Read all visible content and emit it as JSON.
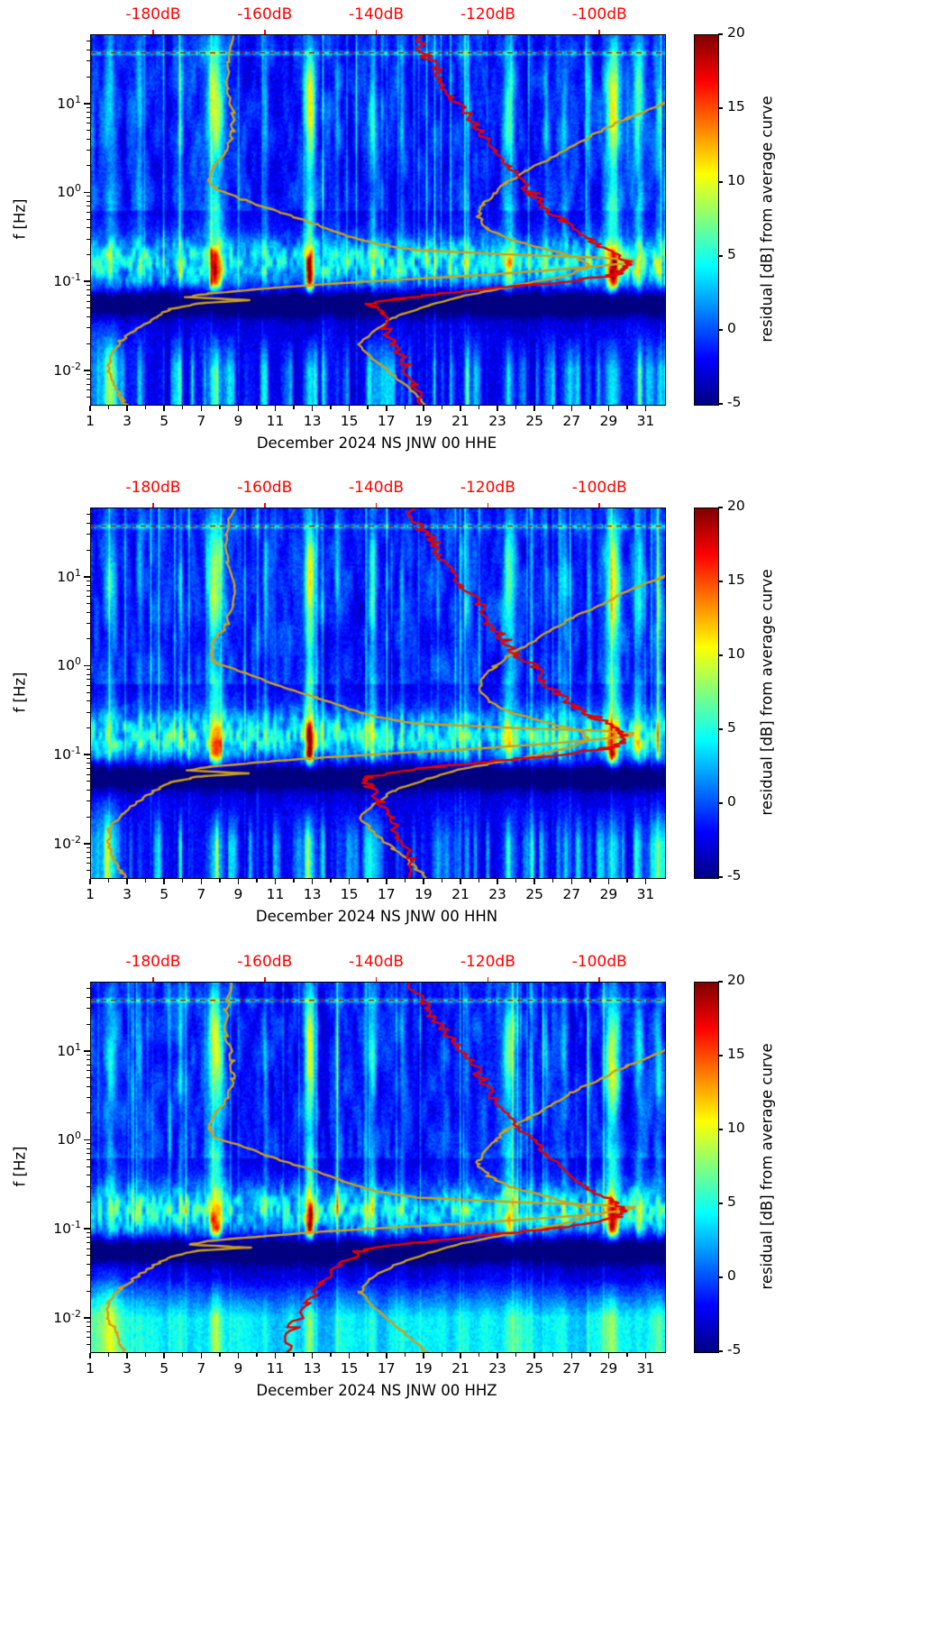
{
  "figure": {
    "background": "#ffffff"
  },
  "chart_data": {
    "type": "heatmap",
    "subtype": "seismic-psd-residual-spectrogram",
    "shared": {
      "ylabel": "f [Hz]",
      "y_scale": "log",
      "y_range_hz": [
        0.0042,
        60
      ],
      "y_major_ticks": [
        "10^1",
        "10^0",
        "10^-1",
        "10^-2"
      ],
      "y_major_ticks_hz": [
        10,
        1,
        0.1,
        0.01
      ],
      "x_axis": {
        "unit": "day of month",
        "ticks": [
          1,
          3,
          5,
          7,
          9,
          11,
          13,
          15,
          17,
          19,
          21,
          23,
          25,
          27,
          29,
          31
        ],
        "range": [
          1,
          32
        ]
      },
      "top_axis": {
        "unit": "dB",
        "color": "#ff0000",
        "ticks_db": [
          -180,
          -160,
          -140,
          -120,
          -100
        ],
        "tick_labels": [
          "-180dB",
          "-160dB",
          "-140dB",
          "-120dB",
          "-100dB"
        ],
        "range_db": [
          -191.3,
          -88.4
        ]
      },
      "colorbar": {
        "label": "residual [dB] from average curve",
        "range": [
          -5,
          20
        ],
        "ticks": [
          20,
          15,
          10,
          5,
          0,
          -5
        ],
        "colormap": "jet",
        "stops": [
          {
            "t": 0,
            "c": "#000083"
          },
          {
            "t": 0.125,
            "c": "#0000ff"
          },
          {
            "t": 0.375,
            "c": "#00ffff"
          },
          {
            "t": 0.625,
            "c": "#ffff00"
          },
          {
            "t": 0.875,
            "c": "#ff0000"
          },
          {
            "t": 1,
            "c": "#800000"
          }
        ]
      },
      "marker_line_hz": 38,
      "overlay_curves": [
        {
          "name": "noise-model-upper",
          "color": "#cc9f1d",
          "points_hz_db": [
            [
              14,
              -84
            ],
            [
              10,
              -89
            ],
            [
              7,
              -95
            ],
            [
              5,
              -100
            ],
            [
              3.5,
              -105
            ],
            [
              2.5,
              -109
            ],
            [
              1.8,
              -113
            ],
            [
              1.3,
              -117
            ],
            [
              1.0,
              -119
            ],
            [
              0.75,
              -121
            ],
            [
              0.55,
              -122
            ],
            [
              0.4,
              -120
            ],
            [
              0.3,
              -116
            ],
            [
              0.24,
              -110
            ],
            [
              0.19,
              -104
            ],
            [
              0.15,
              -102
            ],
            [
              0.12,
              -106
            ],
            [
              0.1,
              -112
            ],
            [
              0.085,
              -118
            ],
            [
              0.07,
              -125
            ],
            [
              0.055,
              -131
            ],
            [
              0.04,
              -137
            ],
            [
              0.028,
              -141
            ],
            [
              0.02,
              -143
            ],
            [
              0.014,
              -141
            ],
            [
              0.009,
              -137
            ],
            [
              0.006,
              -134
            ],
            [
              0.0042,
              -131
            ]
          ]
        },
        {
          "name": "noise-model-lower",
          "color": "#cc9f1d",
          "points_hz_db": [
            [
              58,
              -166
            ],
            [
              30,
              -167
            ],
            [
              15,
              -167
            ],
            [
              8,
              -166
            ],
            [
              5,
              -166
            ],
            [
              3,
              -167
            ],
            [
              2,
              -169
            ],
            [
              1.4,
              -170
            ],
            [
              1.1,
              -169
            ],
            [
              0.85,
              -164
            ],
            [
              0.6,
              -157
            ],
            [
              0.45,
              -151
            ],
            [
              0.33,
              -145
            ],
            [
              0.27,
              -140
            ],
            [
              0.23,
              -133
            ],
            [
              0.205,
              -116
            ],
            [
              0.19,
              -100
            ],
            [
              0.178,
              -94
            ],
            [
              0.165,
              -95
            ],
            [
              0.15,
              -101
            ],
            [
              0.135,
              -110
            ],
            [
              0.12,
              -122
            ],
            [
              0.105,
              -138
            ],
            [
              0.095,
              -150
            ],
            [
              0.085,
              -160
            ],
            [
              0.075,
              -170
            ],
            [
              0.068,
              -174
            ],
            [
              0.063,
              -163
            ],
            [
              0.058,
              -172
            ],
            [
              0.05,
              -177
            ],
            [
              0.04,
              -180
            ],
            [
              0.03,
              -183
            ],
            [
              0.022,
              -186
            ],
            [
              0.015,
              -188
            ],
            [
              0.01,
              -188
            ],
            [
              0.007,
              -187
            ],
            [
              0.005,
              -186
            ],
            [
              0.0042,
              -185
            ]
          ]
        }
      ],
      "high_noise_events": [
        [
          2.0,
          0.3,
          6
        ],
        [
          3.6,
          0.15,
          5
        ],
        [
          5.8,
          0.12,
          7
        ],
        [
          7.7,
          0.45,
          13
        ],
        [
          10.4,
          0.12,
          6
        ],
        [
          12.8,
          0.28,
          16
        ],
        [
          14.3,
          0.12,
          5
        ],
        [
          16.2,
          0.2,
          8
        ],
        [
          17.8,
          0.1,
          5
        ],
        [
          21.3,
          0.15,
          5
        ],
        [
          23.6,
          0.35,
          9
        ],
        [
          25.6,
          0.12,
          5
        ],
        [
          26.6,
          0.2,
          6
        ],
        [
          27.9,
          0.12,
          6
        ],
        [
          29.2,
          0.4,
          14
        ],
        [
          30.6,
          0.25,
          8
        ],
        [
          31.7,
          0.2,
          7
        ]
      ]
    },
    "panels": [
      {
        "xlabel": "December 2024 NS JNW 00 HHE",
        "station_curve": {
          "name": "station-average-psd",
          "color": "#e60000",
          "points_hz_db": [
            [
              58,
              -133
            ],
            [
              35,
              -131
            ],
            [
              25,
              -129
            ],
            [
              18,
              -128
            ],
            [
              12,
              -127
            ],
            [
              8,
              -124
            ],
            [
              5,
              -122
            ],
            [
              3,
              -119
            ],
            [
              2,
              -117
            ],
            [
              1.4,
              -114
            ],
            [
              1,
              -112
            ],
            [
              0.7,
              -110
            ],
            [
              0.5,
              -107
            ],
            [
              0.35,
              -104
            ],
            [
              0.27,
              -101
            ],
            [
              0.21,
              -98
            ],
            [
              0.17,
              -95
            ],
            [
              0.14,
              -95
            ],
            [
              0.12,
              -98
            ],
            [
              0.1,
              -107
            ],
            [
              0.088,
              -117
            ],
            [
              0.075,
              -128
            ],
            [
              0.065,
              -136
            ],
            [
              0.057,
              -141
            ],
            [
              0.045,
              -140
            ],
            [
              0.03,
              -138
            ],
            [
              0.02,
              -137
            ],
            [
              0.012,
              -135
            ],
            [
              0.007,
              -134
            ],
            [
              0.0042,
              -132
            ]
          ]
        }
      },
      {
        "xlabel": "December 2024 NS JNW 00 HHN",
        "station_curve": {
          "name": "station-average-psd",
          "color": "#e60000",
          "points_hz_db": [
            [
              58,
              -134
            ],
            [
              35,
              -132
            ],
            [
              25,
              -130
            ],
            [
              18,
              -129
            ],
            [
              12,
              -127
            ],
            [
              8,
              -125
            ],
            [
              5,
              -122
            ],
            [
              3,
              -120
            ],
            [
              2,
              -117
            ],
            [
              1.4,
              -115
            ],
            [
              1,
              -112
            ],
            [
              0.7,
              -110
            ],
            [
              0.5,
              -108
            ],
            [
              0.35,
              -104
            ],
            [
              0.27,
              -101
            ],
            [
              0.21,
              -98
            ],
            [
              0.17,
              -96
            ],
            [
              0.14,
              -96
            ],
            [
              0.12,
              -99
            ],
            [
              0.1,
              -108
            ],
            [
              0.088,
              -118
            ],
            [
              0.075,
              -129
            ],
            [
              0.065,
              -137
            ],
            [
              0.057,
              -142
            ],
            [
              0.045,
              -141
            ],
            [
              0.03,
              -139
            ],
            [
              0.02,
              -138
            ],
            [
              0.012,
              -136
            ],
            [
              0.007,
              -134
            ],
            [
              0.0042,
              -133
            ]
          ]
        }
      },
      {
        "xlabel": "December 2024 NS JNW 00 HHZ",
        "station_curve": {
          "name": "station-average-psd",
          "color": "#e60000",
          "points_hz_db": [
            [
              58,
              -135
            ],
            [
              35,
              -132
            ],
            [
              25,
              -130
            ],
            [
              18,
              -128
            ],
            [
              12,
              -126
            ],
            [
              8,
              -124
            ],
            [
              5,
              -121
            ],
            [
              3,
              -119
            ],
            [
              2,
              -116
            ],
            [
              1.4,
              -114
            ],
            [
              1,
              -112
            ],
            [
              0.7,
              -109
            ],
            [
              0.5,
              -107
            ],
            [
              0.35,
              -104
            ],
            [
              0.27,
              -101
            ],
            [
              0.21,
              -98
            ],
            [
              0.17,
              -96
            ],
            [
              0.14,
              -96
            ],
            [
              0.12,
              -100
            ],
            [
              0.1,
              -110
            ],
            [
              0.088,
              -120
            ],
            [
              0.075,
              -130
            ],
            [
              0.065,
              -138
            ],
            [
              0.057,
              -143
            ],
            [
              0.04,
              -146
            ],
            [
              0.025,
              -150
            ],
            [
              0.015,
              -153
            ],
            [
              0.008,
              -155
            ],
            [
              0.0042,
              -156
            ]
          ]
        }
      }
    ]
  }
}
